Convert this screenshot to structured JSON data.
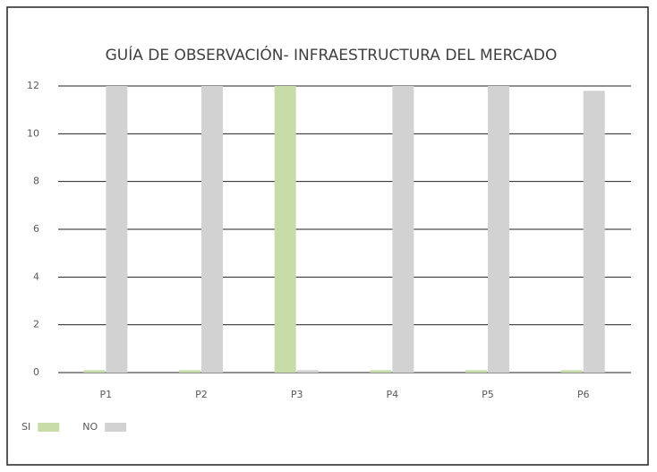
{
  "chart_data": {
    "type": "bar",
    "title": "GUÍA DE OBSERVACIÓN- INFRAESTRUCTURA DEL MERCADO",
    "categories": [
      "P1",
      "P2",
      "P3",
      "P4",
      "P5",
      "P6"
    ],
    "series": [
      {
        "name": "SI",
        "color": "#c8dca8",
        "values": [
          0.1,
          0.1,
          12,
          0.1,
          0.1,
          0.1
        ]
      },
      {
        "name": "NO",
        "color": "#d2d2d2",
        "values": [
          12,
          12,
          0.1,
          12,
          12,
          11.8
        ]
      }
    ],
    "ylim": [
      0,
      12
    ],
    "yticks": [
      0,
      2,
      4,
      6,
      8,
      10,
      12
    ],
    "grid": true,
    "legend": "bottom-left"
  }
}
